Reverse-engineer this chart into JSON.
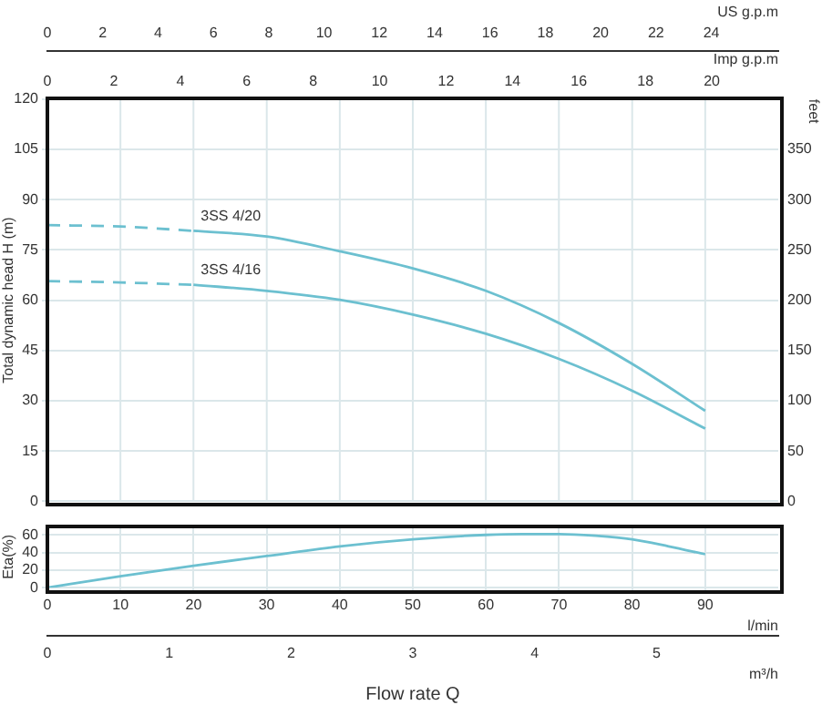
{
  "chart_data": [
    {
      "type": "line",
      "ylabel": "Total dynamic head H (m)",
      "y2label": "feet",
      "xlabel": "US g.p.m",
      "x2label": "Imp g.p.m",
      "xlim": [
        0,
        26.42
      ],
      "xticks": [
        0,
        2,
        4,
        6,
        8,
        10,
        12,
        14,
        16,
        18,
        20,
        22,
        24
      ],
      "x2lim": [
        0,
        22
      ],
      "x2ticks": [
        0,
        2,
        4,
        6,
        8,
        10,
        12,
        14,
        16,
        18,
        20
      ],
      "ylim": [
        0,
        120
      ],
      "yticks": [
        0,
        15,
        30,
        45,
        60,
        75,
        90,
        105,
        120
      ],
      "y2lim": [
        0,
        400
      ],
      "y2ticks": [
        0,
        50,
        100,
        150,
        200,
        250,
        300,
        350
      ],
      "grid": "y",
      "legend": false,
      "marker": "none",
      "ref_lines": [
        {
          "axis": "x",
          "value": 2.64,
          "color": "#dbe7ea"
        },
        {
          "axis": "x",
          "value": 5.28,
          "color": "#dbe7ea"
        },
        {
          "axis": "x",
          "value": 7.93,
          "color": "#dbe7ea"
        },
        {
          "axis": "x",
          "value": 10.57,
          "color": "#dbe7ea"
        },
        {
          "axis": "x",
          "value": 13.21,
          "color": "#dbe7ea"
        },
        {
          "axis": "x",
          "value": 15.85,
          "color": "#dbe7ea"
        },
        {
          "axis": "x",
          "value": 18.49,
          "color": "#dbe7ea"
        },
        {
          "axis": "x",
          "value": 21.14,
          "color": "#dbe7ea"
        },
        {
          "axis": "x",
          "value": 23.78,
          "color": "#dbe7ea"
        }
      ],
      "series": [
        {
          "color": "#6cc0d0",
          "line_style": "dashed",
          "x": [
            0,
            2.64,
            5.28
          ],
          "values": [
            82.4,
            82,
            80.7
          ]
        },
        {
          "name": "3SS 4/20",
          "color": "#6cc0d0",
          "line_style": "solid",
          "x": [
            5.28,
            7.93,
            10.57,
            13.21,
            15.85,
            18.49,
            21.14,
            23.78
          ],
          "values": [
            80.7,
            79,
            74.6,
            69.5,
            62.8,
            53.2,
            41,
            27
          ]
        },
        {
          "color": "#6cc0d0",
          "line_style": "dashed",
          "x": [
            0,
            2.64,
            5.28
          ],
          "values": [
            65.7,
            65.3,
            64.6
          ]
        },
        {
          "name": "3SS 4/16",
          "color": "#6cc0d0",
          "line_style": "solid",
          "x": [
            5.28,
            7.93,
            10.57,
            13.21,
            15.85,
            18.49,
            21.14,
            23.78
          ],
          "values": [
            64.6,
            62.8,
            60.1,
            55.7,
            50,
            42.5,
            33,
            21.7
          ]
        }
      ]
    },
    {
      "type": "line",
      "ylabel": "Eta(%)",
      "xlabel": "l/min",
      "x2label": "m³/h",
      "annotations": [
        "Flow rate Q"
      ],
      "xlim": [
        0,
        100
      ],
      "xticks": [
        0,
        10,
        20,
        30,
        40,
        50,
        60,
        70,
        80,
        90
      ],
      "ylim": [
        0,
        70
      ],
      "yticks": [
        0,
        20,
        40,
        60
      ],
      "x2lim": [
        0,
        6
      ],
      "x2ticks": [
        0,
        1,
        2,
        3,
        4,
        5
      ],
      "grid": true,
      "legend": false,
      "marker": "none",
      "series": [
        {
          "color": "#6cc0d0",
          "line_style": "solid",
          "x": [
            0,
            10,
            20,
            30,
            40,
            50,
            60,
            65,
            70,
            75,
            80,
            85,
            90
          ],
          "values": [
            0,
            13,
            25,
            36,
            47,
            55,
            60,
            61,
            61,
            59,
            55,
            47,
            38
          ]
        }
      ]
    }
  ]
}
